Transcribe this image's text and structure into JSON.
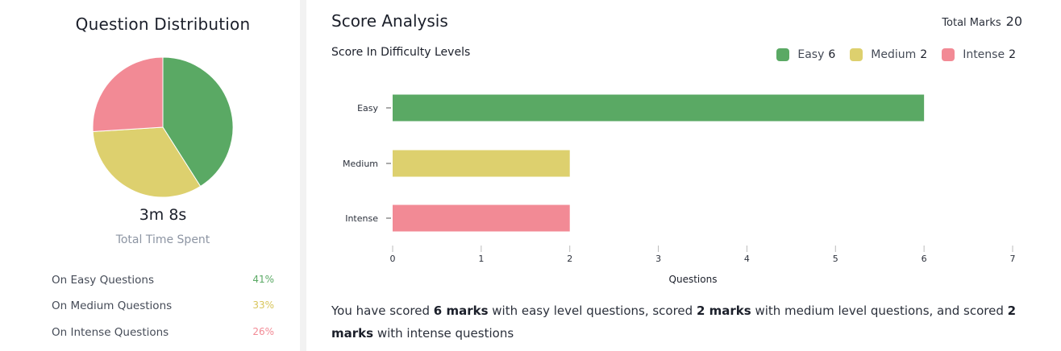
{
  "question_distribution": {
    "title": "Question Distribution",
    "time_value": "3m 8s",
    "time_label": "Total Time Spent",
    "rows": [
      {
        "label": "On Easy Questions",
        "pct": "41%",
        "color": "#5aa964"
      },
      {
        "label": "On Medium Questions",
        "pct": "33%",
        "color": "#ddd06e"
      },
      {
        "label": "On Intense Questions",
        "pct": "26%",
        "color": "#f28a95"
      }
    ]
  },
  "score_analysis": {
    "title": "Score Analysis",
    "total_marks_label": "Total Marks",
    "total_marks_value": "20",
    "subtitle": "Score In Difficulty Levels",
    "legend": [
      {
        "name": "Easy",
        "value": "6",
        "color": "#5aa964"
      },
      {
        "name": "Medium",
        "value": "2",
        "color": "#ddd06e"
      },
      {
        "name": "Intense",
        "value": "2",
        "color": "#f28a95"
      }
    ],
    "summary": {
      "p1": "You have scored ",
      "b1": "6 marks",
      "p2": " with easy level questions, scored ",
      "b2": "2 marks",
      "p3": " with medium level questions, and scored ",
      "b3": "2 marks",
      "p4": " with intense questions"
    }
  },
  "chart_data": [
    {
      "type": "pie",
      "labels": [
        "Easy",
        "Medium",
        "Intense"
      ],
      "values": [
        41,
        33,
        26
      ],
      "colors": [
        "#5aa964",
        "#ddd06e",
        "#f28a95"
      ]
    },
    {
      "type": "bar",
      "orientation": "horizontal",
      "categories": [
        "Easy",
        "Medium",
        "Intense"
      ],
      "values": [
        6,
        2,
        2
      ],
      "colors": [
        "#5aa964",
        "#ddd06e",
        "#f28a95"
      ],
      "xlabel": "Questions",
      "xlim": [
        0,
        7
      ],
      "xticks": [
        0,
        1,
        2,
        3,
        4,
        5,
        6,
        7
      ]
    }
  ]
}
